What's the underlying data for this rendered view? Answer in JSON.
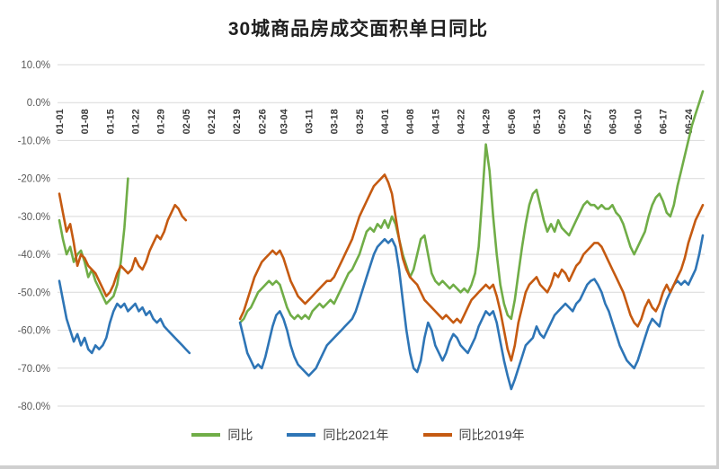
{
  "page": {
    "title": "30城商品房成交面积单日同比"
  },
  "chart_data": {
    "type": "line",
    "title": "30城商品房成交面积单日同比",
    "grid": true,
    "legend_position": "bottom",
    "point_interval": "daily",
    "y_axis": {
      "max": 10,
      "min": -80,
      "unit": "%",
      "tick_values": [
        10,
        0,
        -10,
        -20,
        -30,
        -40,
        -50,
        -60,
        -70,
        -80
      ],
      "tick_labels": [
        "10.0%",
        "0.0%",
        "-10.0%",
        "-20.0%",
        "-30.0%",
        "-40.0%",
        "-50.0%",
        "-60.0%",
        "-70.0%",
        "-80.0%"
      ]
    },
    "x_axis": {
      "first_point": "01-01",
      "last_point": "06-28",
      "tick_labels": [
        "01-01",
        "01-08",
        "01-15",
        "01-22",
        "01-29",
        "02-05",
        "02-12",
        "02-19",
        "02-26",
        "03-04",
        "03-11",
        "03-18",
        "03-25",
        "04-01",
        "04-08",
        "04-15",
        "04-22",
        "04-29",
        "05-06",
        "05-13",
        "05-20",
        "05-27",
        "06-03",
        "06-10",
        "06-17",
        "06-24"
      ],
      "tick_indices": [
        0,
        7,
        14,
        21,
        28,
        35,
        42,
        49,
        56,
        62,
        69,
        76,
        83,
        90,
        97,
        104,
        111,
        118,
        125,
        132,
        139,
        146,
        153,
        160,
        167,
        174
      ]
    },
    "series": [
      {
        "name": "同比",
        "color": "#70AD47",
        "values": [
          -31,
          -36,
          -40,
          -38,
          -42,
          -40,
          -39,
          -42,
          -46,
          -44,
          -47,
          -49,
          -51,
          -53,
          -52,
          -51,
          -48,
          -42,
          -33,
          -20,
          null,
          null,
          null,
          null,
          null,
          null,
          null,
          null,
          null,
          null,
          null,
          null,
          null,
          null,
          null,
          null,
          null,
          null,
          null,
          null,
          null,
          null,
          null,
          null,
          null,
          null,
          null,
          null,
          null,
          null,
          -58,
          -57,
          -55,
          -54,
          -52,
          -50,
          -49,
          -48,
          -47,
          -48,
          -47,
          -48,
          -51,
          -54,
          -56,
          -57,
          -56,
          -57,
          -56,
          -57,
          -55,
          -54,
          -53,
          -54,
          -53,
          -52,
          -53,
          -51,
          -49,
          -47,
          -45,
          -44,
          -42,
          -40,
          -37,
          -34,
          -33,
          -34,
          -32,
          -33,
          -31,
          -33,
          -30,
          -32,
          -36,
          -40,
          -43,
          -46,
          -44,
          -40,
          -36,
          -35,
          -40,
          -45,
          -47,
          -48,
          -47,
          -48,
          -49,
          -48,
          -49,
          -50,
          -49,
          -50,
          -48,
          -45,
          -38,
          -25,
          -11,
          -18,
          -30,
          -40,
          -48,
          -53,
          -56,
          -57,
          -52,
          -45,
          -38,
          -32,
          -27,
          -24,
          -23,
          -27,
          -31,
          -34,
          -32,
          -34,
          -31,
          -33,
          -34,
          -35,
          -33,
          -31,
          -29,
          -27,
          -26,
          -27,
          -27,
          -28,
          -27,
          -28,
          -28,
          -27,
          -29,
          -30,
          -32,
          -35,
          -38,
          -40,
          -38,
          -36,
          -34,
          -30,
          -27,
          -25,
          -24,
          -26,
          -29,
          -30,
          -27,
          -22,
          -18,
          -14,
          -10,
          -6,
          -3,
          0,
          3
        ]
      },
      {
        "name": "同比2021年",
        "color": "#2E75B6",
        "values": [
          -47,
          -52,
          -57,
          -60,
          -63,
          -61,
          -64,
          -62,
          -65,
          -66,
          -64,
          -65,
          -64,
          -62,
          -58,
          -55,
          -53,
          -54,
          -53,
          -55,
          -54,
          -53,
          -55,
          -54,
          -56,
          -55,
          -57,
          -58,
          -57,
          -59,
          -60,
          -61,
          -62,
          -63,
          -64,
          -65,
          -66,
          null,
          null,
          null,
          null,
          null,
          null,
          null,
          null,
          null,
          null,
          null,
          null,
          null,
          -58,
          -62,
          -66,
          -68,
          -70,
          -69,
          -70,
          -67,
          -63,
          -59,
          -56,
          -55,
          -57,
          -60,
          -64,
          -67,
          -69,
          -70,
          -71,
          -72,
          -71,
          -70,
          -68,
          -66,
          -64,
          -63,
          -62,
          -61,
          -60,
          -59,
          -58,
          -57,
          -55,
          -52,
          -49,
          -46,
          -43,
          -40,
          -38,
          -37,
          -36,
          -37,
          -36,
          -38,
          -44,
          -52,
          -60,
          -66,
          -70,
          -71,
          -68,
          -62,
          -58,
          -60,
          -64,
          -66,
          -68,
          -66,
          -63,
          -61,
          -62,
          -64,
          -65,
          -66,
          -64,
          -62,
          -59,
          -57,
          -55,
          -56,
          -55,
          -58,
          -63,
          -68,
          -72,
          -75.5,
          -73,
          -70,
          -67,
          -64,
          -63,
          -62,
          -59,
          -61,
          -62,
          -60,
          -58,
          -56,
          -55,
          -54,
          -53,
          -54,
          -55,
          -53,
          -52,
          -50,
          -48,
          -47,
          -46.5,
          -48,
          -50,
          -53,
          -55,
          -58,
          -61,
          -64,
          -66,
          -68,
          -69,
          -70,
          -68,
          -65,
          -62,
          -59,
          -57,
          -58,
          -59,
          -55,
          -52,
          -50,
          -48,
          -47,
          -48,
          -47,
          -48,
          -46,
          -44,
          -40,
          -35
        ]
      },
      {
        "name": "同比2019年",
        "color": "#C55A11",
        "values": [
          -24,
          -29,
          -34,
          -32,
          -37,
          -43,
          -40,
          -41,
          -43,
          -44,
          -45,
          -47,
          -49,
          -51,
          -50,
          -48,
          -45,
          -43,
          -44,
          -45,
          -44,
          -41,
          -43,
          -44,
          -42,
          -39,
          -37,
          -35,
          -36,
          -34,
          -31,
          -29,
          -27,
          -28,
          -30,
          -31,
          null,
          null,
          null,
          null,
          null,
          null,
          null,
          null,
          null,
          null,
          null,
          null,
          null,
          null,
          -57,
          -55,
          -52,
          -49,
          -46,
          -44,
          -42,
          -41,
          -40,
          -39,
          -40,
          -39,
          -41,
          -44,
          -47,
          -49,
          -51,
          -52,
          -53,
          -52,
          -51,
          -50,
          -49,
          -48,
          -47,
          -47,
          -46,
          -44,
          -42,
          -40,
          -38,
          -36,
          -33,
          -30,
          -28,
          -26,
          -24,
          -22,
          -21,
          -20,
          -19,
          -21,
          -24,
          -30,
          -36,
          -41,
          -44,
          -46,
          -47,
          -48,
          -50,
          -52,
          -53,
          -54,
          -55,
          -56,
          -57,
          -56,
          -57,
          -58,
          -57,
          -58,
          -56,
          -54,
          -52,
          -51,
          -50,
          -49,
          -48,
          -49,
          -48,
          -51,
          -55,
          -60,
          -65,
          -68,
          -64,
          -58,
          -54,
          -50,
          -48,
          -47,
          -46,
          -48,
          -49,
          -50,
          -48,
          -45,
          -46,
          -44,
          -45,
          -47,
          -45,
          -43,
          -42,
          -40,
          -39,
          -38,
          -37,
          -37,
          -38,
          -40,
          -42,
          -44,
          -46,
          -48,
          -50,
          -53,
          -56,
          -58,
          -59,
          -57,
          -54,
          -52,
          -54,
          -55,
          -53,
          -50,
          -48,
          -50,
          -48,
          -46,
          -44,
          -41,
          -37,
          -34,
          -31,
          -29,
          -27
        ]
      }
    ]
  }
}
